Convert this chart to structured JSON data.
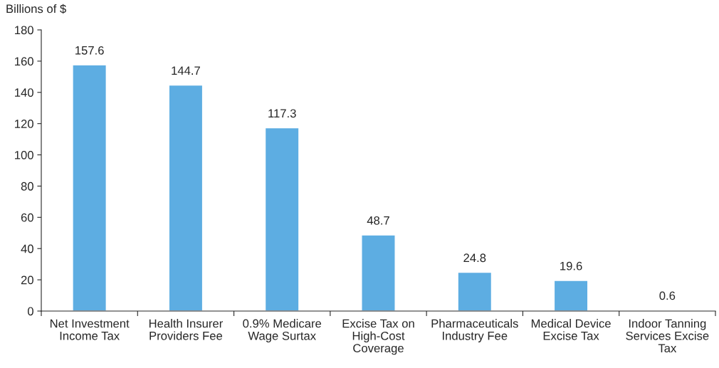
{
  "chart_data": {
    "type": "bar",
    "ylabel": "Billions of $",
    "categories": [
      "Net Investment Income Tax",
      "Health Insurer Providers Fee",
      "0.9% Medicare Wage Surtax",
      "Excise Tax on High-Cost Coverage",
      "Pharmaceuticals Industry Fee",
      "Medical Device Excise Tax",
      "Indoor Tanning Services Excise Tax"
    ],
    "values": [
      157.6,
      144.7,
      117.3,
      48.7,
      24.8,
      19.6,
      0.6
    ],
    "color": "#5dade2",
    "ylim": [
      0,
      180
    ],
    "yticks": [
      0,
      20,
      40,
      60,
      80,
      100,
      120,
      140,
      160,
      180
    ],
    "data_labels": true,
    "grid": false
  }
}
